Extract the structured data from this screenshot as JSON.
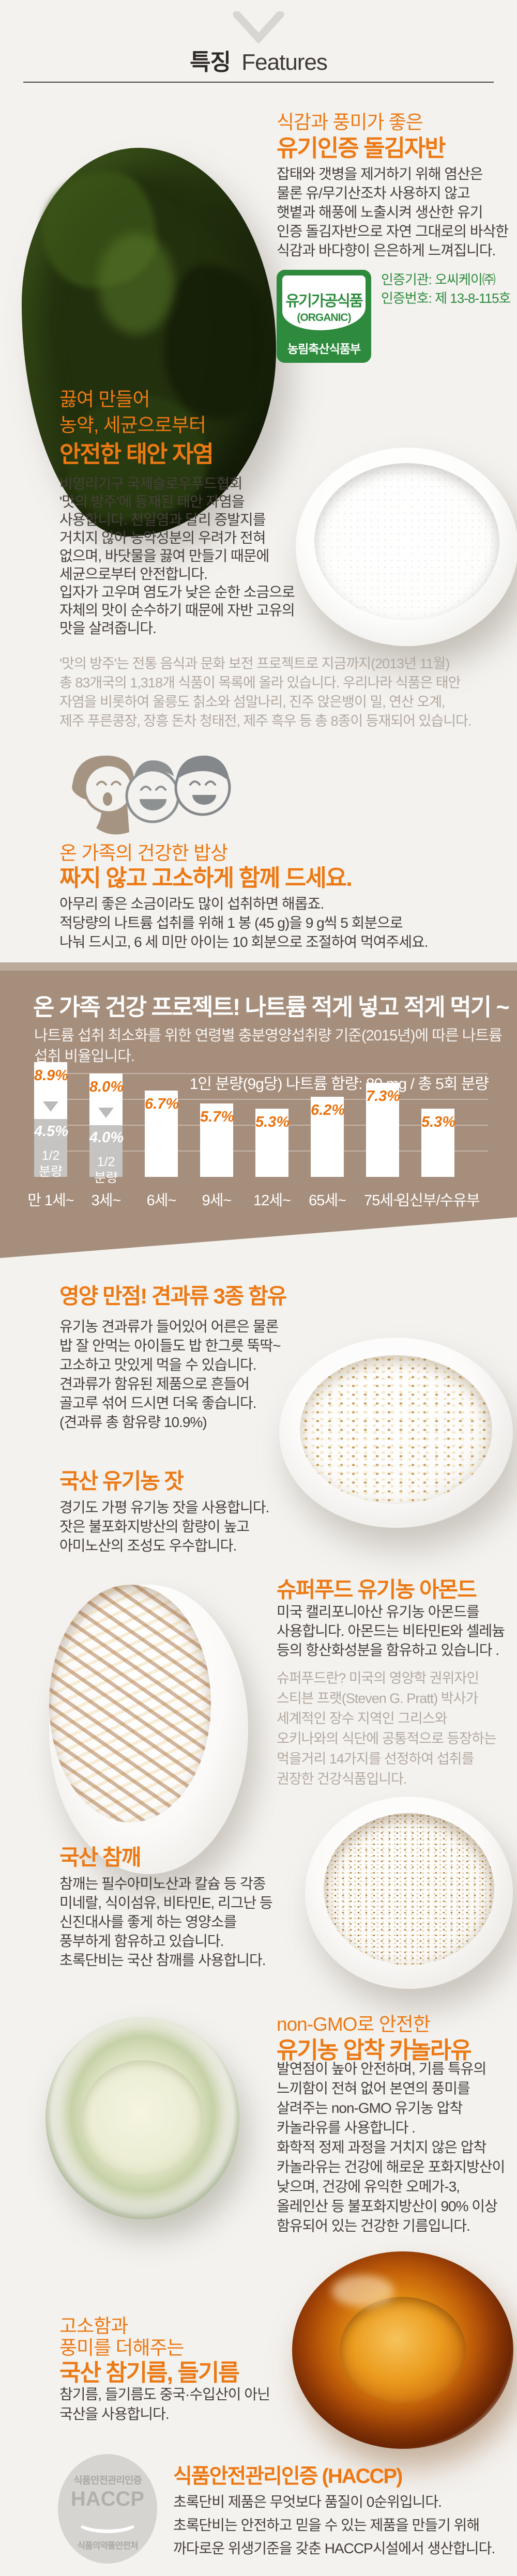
{
  "header": {
    "title_ko": "특징",
    "title_en": "Features"
  },
  "icons": {
    "chevron_down": "chevron-down-icon",
    "family_illustration": "family-faces-illustration",
    "organic_badge": "organic-certification-badge",
    "haccp_badge": "haccp-certification-badge"
  },
  "colors": {
    "accent_orange": "#ec7914",
    "cert_green": "#2e8b3e",
    "band_brown": "#a68e7c",
    "band_strip": "#b9aa9b",
    "text_dark": "#46403a",
    "text_muted": "#b2a9a1",
    "chart_label_orange": "#e8720e",
    "page_bg": "#f4f2ef"
  },
  "sections": {
    "gim": {
      "h1": "식감과 풍미가 좋은",
      "h2": "유기인증 돌김자반",
      "body": "잡태와 갯병을 제거하기 위해 염산은\n물론 유/무기산조차 사용하지 않고\n햇볕과 해풍에 노출시켜 생산한 유기\n인증 돌김자반으로 자연 그대로의 바삭한\n식감과 바다향이 은은하게 느껴집니다.",
      "badge_name": "유기가공식품",
      "badge_sub": "(ORGANIC)",
      "badge_org": "농림축산식품부",
      "cert": "인증기관: 오씨케이㈜\n인증번호: 제 13-8-115호"
    },
    "salt": {
      "h1": "끓여 만들어",
      "h2": "농약, 세균으로부터",
      "h3": "안전한 태안 자염",
      "body": "비영리기구 국제슬로우푸드협회\n'맛의 방주'에 등재된 태안 자염을\n사용합니다. 천일염과 달리 증발지를\n거치지 않아 농약성분의 우려가 전혀\n없으며, 바닷물을 끓여 만들기 때문에\n세균으로부터 안전합니다.\n입자가 고우며 염도가 낮은 순한 소금으로\n자체의 맛이 순수하기 때문에 자반 고유의\n맛을 살려줍니다.",
      "footnote": "'맛의 방주'는 전통 음식과 문화 보전 프로젝트로 지금까지(2013년 11월)\n총 83개국의 1,318개 식품이 목록에 올라 있습니다. 우리나라 식품은 태안\n자염을 비롯하여 울릉도 칡소와 섬말나리, 진주 앉은뱅이 밀, 연산 오계,\n제주 푸른콩장, 장흥 돈차 청태전, 제주 흑우 등 총 8종이 등재되어 있습니다."
    },
    "family": {
      "h1": "온 가족의 건강한 밥상",
      "h2": "짜지 않고 고소하게 함께 드세요.",
      "body": "아무리 좋은 소금이라도 많이 섭취하면 해롭죠.\n적당량의 나트륨 섭취를 위해 1 봉 (45 g)을 9 g씩 5 회분으로\n나눠 드시고, 6 세 미만 아이는 10 회분으로 조절하여 먹여주세요."
    },
    "nuts": {
      "h": "영양 만점! 견과류 3종 함유",
      "body": "유기농 견과류가 들어있어 어른은 물론\n밥 잘 안먹는 아이들도 밥 한그릇 뚝딱~\n고소하고 맛있게 먹을 수 있습니다.\n견과류가 함유된 제품으로 흔들어\n골고루 섞어 드시면 더욱 좋습니다.\n(견과류 총 함유량 10.9%)"
    },
    "pine": {
      "h": "국산 유기농 잣",
      "body": "경기도 가평 유기농 잣을 사용합니다.\n잣은 불포화지방산의 함량이 높고\n아미노산의 조성도 우수합니다."
    },
    "almond": {
      "h": "슈퍼푸드 유기농 아몬드",
      "body": "미국 캘리포니아산 유기농 아몬드를\n사용합니다. 아몬드는 비타민E와 셀레늄\n등의 항산화성분을 함유하고 있습니다 .",
      "footnote": "슈퍼푸드란? 미국의 영양학 권위자인\n스티븐 프랫(Steven G. Pratt) 박사가\n세계적인 장수 지역인 그리스와\n오키나와의 식단에 공통적으로 등장하는\n먹을거리 14가지를 선정하여 섭취를\n권장한 건강식품입니다."
    },
    "sesame": {
      "h": "국산 참깨",
      "body": "참깨는 필수아미노산과 칼슘 등 각종\n미네랄, 식이섬유, 비타민E, 리그난 등\n신진대사를 좋게 하는 영양소를\n풍부하게 함유하고 있습니다.\n초록단비는 국산 참깨를 사용합니다."
    },
    "canola": {
      "h1": "non-GMO로 안전한",
      "h2": "유기농 압착 카놀라유",
      "body": "발연점이 높아 안전하며, 기름 특유의\n느끼함이 전혀 없어 본연의 풍미를\n살려주는 non-GMO 유기농 압착\n카놀라유를 사용합니다 .\n화학적 정제 과정을 거치지 않은 압착\n카놀라유는 건강에 해로운 포화지방산이\n낮으며, 건강에 유익한 오메가-3,\n올레인산 등 불포화지방산이 90% 이상\n함유되어 있는 건강한 기름입니다."
    },
    "oils": {
      "h1": "고소함과",
      "h2": "풍미를 더해주는",
      "h3": "국산 참기름, 들기름",
      "body": "참기름, 들기름도 중국·수입산이 아닌\n국산을 사용합니다."
    },
    "haccp": {
      "badge_top": "식품안전관리인증",
      "badge_main": "HACCP",
      "badge_bottom": "식품의약품안전처",
      "h": "식품안전관리인증 (HACCP)",
      "body": "초록단비 제품은 무엇보다 품질이 0순위입니다.\n초록단비는 안전하고 믿을 수 있는 제품을 만들기 위해\n까다로운 위생기준을 갖춘 HACCP시설에서 생산합니다."
    }
  },
  "chart_data": {
    "type": "bar",
    "title": "온 가족 건강 프로젝트! 나트륨 적게 넣고 적게 먹기 ~",
    "subtitle": "나트륨 섭취 최소화를 위한 연령별 충분영양섭취량 기준(2015년)에 따른 나트륨\n섭취 비율입니다.",
    "note": "1인 분량(9g당) 나트륨 함량: 80 mg / 총 5회 분량",
    "categories": [
      "만 1세~",
      "3세~",
      "6세~",
      "9세~",
      "12세~",
      "65세~",
      "75세~",
      "임신부/수유부"
    ],
    "values": [
      8.9,
      8.0,
      6.7,
      5.7,
      5.3,
      6.2,
      7.3,
      5.3
    ],
    "value_labels": [
      "8.9%",
      "8.0%",
      "6.7%",
      "5.7%",
      "5.3%",
      "6.2%",
      "7.3%",
      "5.3%"
    ],
    "reduced": [
      {
        "index": 0,
        "value": 4.5,
        "label": "4.5%",
        "caption": "1/2\n분량"
      },
      {
        "index": 1,
        "value": 4.0,
        "label": "4.0%",
        "caption": "1/2\n분량"
      }
    ],
    "ylabel": "",
    "xlabel": "",
    "ylim": [
      0,
      9.5
    ],
    "gridlines_percent": [
      2,
      4,
      6,
      8
    ],
    "grid": true,
    "legend": "none",
    "bar_color": "#ffffff",
    "reduced_color": "#c6c4c2",
    "label_color": "#e8720e"
  }
}
